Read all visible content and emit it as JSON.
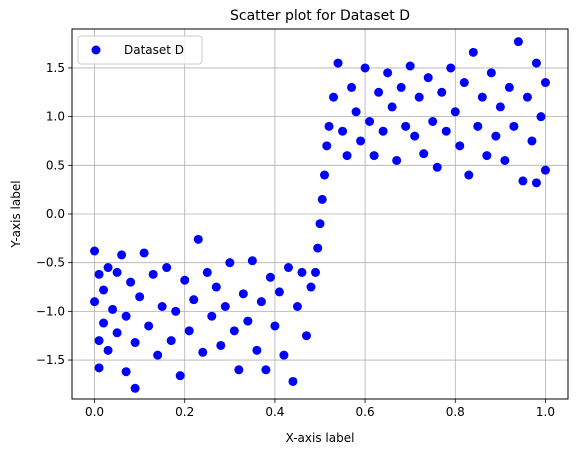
{
  "chart_data": {
    "type": "scatter",
    "title": "Scatter plot for Dataset D",
    "xlabel": "X-axis label",
    "ylabel": "Y-axis label",
    "xlim": [
      -0.05,
      1.05
    ],
    "ylim": [
      -1.9,
      1.9
    ],
    "xticks": [
      0.0,
      0.2,
      0.4,
      0.6,
      0.8,
      1.0
    ],
    "xtick_labels": [
      "0.0",
      "0.2",
      "0.4",
      "0.6",
      "0.8",
      "1.0"
    ],
    "yticks": [
      -1.5,
      -1.0,
      -0.5,
      0.0,
      0.5,
      1.0,
      1.5
    ],
    "ytick_labels": [
      "−1.5",
      "−1.0",
      "−0.5",
      "0.0",
      "0.5",
      "1.0",
      "1.5"
    ],
    "grid": true,
    "legend_position": "top-left",
    "colors": {
      "points": "#0000ff",
      "grid": "#b0b0b0",
      "frame": "#000000"
    },
    "series": [
      {
        "name": "Dataset D",
        "color": "#0000ff",
        "points": [
          [
            0.0,
            -0.38
          ],
          [
            0.0,
            -0.9
          ],
          [
            0.01,
            -0.62
          ],
          [
            0.01,
            -1.3
          ],
          [
            0.01,
            -1.58
          ],
          [
            0.02,
            -0.78
          ],
          [
            0.02,
            -1.12
          ],
          [
            0.03,
            -0.55
          ],
          [
            0.03,
            -1.4
          ],
          [
            0.04,
            -0.98
          ],
          [
            0.05,
            -1.22
          ],
          [
            0.05,
            -0.6
          ],
          [
            0.06,
            -0.42
          ],
          [
            0.07,
            -1.05
          ],
          [
            0.07,
            -1.62
          ],
          [
            0.08,
            -0.7
          ],
          [
            0.09,
            -1.79
          ],
          [
            0.09,
            -1.32
          ],
          [
            0.1,
            -0.85
          ],
          [
            0.11,
            -0.4
          ],
          [
            0.12,
            -1.15
          ],
          [
            0.13,
            -0.62
          ],
          [
            0.14,
            -1.45
          ],
          [
            0.15,
            -0.95
          ],
          [
            0.16,
            -0.55
          ],
          [
            0.17,
            -1.3
          ],
          [
            0.18,
            -1.0
          ],
          [
            0.19,
            -1.66
          ],
          [
            0.2,
            -0.68
          ],
          [
            0.21,
            -1.2
          ],
          [
            0.22,
            -0.88
          ],
          [
            0.23,
            -0.26
          ],
          [
            0.24,
            -1.42
          ],
          [
            0.25,
            -0.6
          ],
          [
            0.26,
            -1.05
          ],
          [
            0.27,
            -0.75
          ],
          [
            0.28,
            -1.35
          ],
          [
            0.29,
            -0.95
          ],
          [
            0.3,
            -0.5
          ],
          [
            0.31,
            -1.2
          ],
          [
            0.32,
            -1.6
          ],
          [
            0.33,
            -0.82
          ],
          [
            0.34,
            -1.1
          ],
          [
            0.35,
            -0.48
          ],
          [
            0.36,
            -1.4
          ],
          [
            0.37,
            -0.9
          ],
          [
            0.38,
            -1.6
          ],
          [
            0.39,
            -0.65
          ],
          [
            0.4,
            -1.15
          ],
          [
            0.41,
            -0.8
          ],
          [
            0.42,
            -1.45
          ],
          [
            0.43,
            -0.55
          ],
          [
            0.44,
            -1.72
          ],
          [
            0.45,
            -0.95
          ],
          [
            0.46,
            -0.6
          ],
          [
            0.47,
            -1.25
          ],
          [
            0.48,
            -0.75
          ],
          [
            0.49,
            -0.6
          ],
          [
            0.495,
            -0.35
          ],
          [
            0.5,
            -0.1
          ],
          [
            0.505,
            0.15
          ],
          [
            0.51,
            0.4
          ],
          [
            0.515,
            0.7
          ],
          [
            0.52,
            0.9
          ],
          [
            0.53,
            1.2
          ],
          [
            0.54,
            1.55
          ],
          [
            0.55,
            0.85
          ],
          [
            0.56,
            0.6
          ],
          [
            0.57,
            1.3
          ],
          [
            0.58,
            1.05
          ],
          [
            0.59,
            0.75
          ],
          [
            0.6,
            1.5
          ],
          [
            0.61,
            0.95
          ],
          [
            0.62,
            0.6
          ],
          [
            0.63,
            1.25
          ],
          [
            0.64,
            0.85
          ],
          [
            0.65,
            1.45
          ],
          [
            0.66,
            1.1
          ],
          [
            0.67,
            0.55
          ],
          [
            0.68,
            1.3
          ],
          [
            0.69,
            0.9
          ],
          [
            0.7,
            1.52
          ],
          [
            0.71,
            0.8
          ],
          [
            0.72,
            1.2
          ],
          [
            0.73,
            0.62
          ],
          [
            0.74,
            1.4
          ],
          [
            0.75,
            0.95
          ],
          [
            0.76,
            0.48
          ],
          [
            0.77,
            1.25
          ],
          [
            0.78,
            0.85
          ],
          [
            0.79,
            1.5
          ],
          [
            0.8,
            1.05
          ],
          [
            0.81,
            0.7
          ],
          [
            0.82,
            1.35
          ],
          [
            0.83,
            0.4
          ],
          [
            0.84,
            1.66
          ],
          [
            0.85,
            0.9
          ],
          [
            0.86,
            1.2
          ],
          [
            0.87,
            0.6
          ],
          [
            0.88,
            1.45
          ],
          [
            0.89,
            0.8
          ],
          [
            0.9,
            1.1
          ],
          [
            0.91,
            0.55
          ],
          [
            0.92,
            1.3
          ],
          [
            0.93,
            0.9
          ],
          [
            0.94,
            1.77
          ],
          [
            0.95,
            0.34
          ],
          [
            0.96,
            1.2
          ],
          [
            0.97,
            0.75
          ],
          [
            0.98,
            1.55
          ],
          [
            0.98,
            0.32
          ],
          [
            0.99,
            1.0
          ],
          [
            1.0,
            0.45
          ],
          [
            1.0,
            1.35
          ]
        ]
      }
    ]
  }
}
